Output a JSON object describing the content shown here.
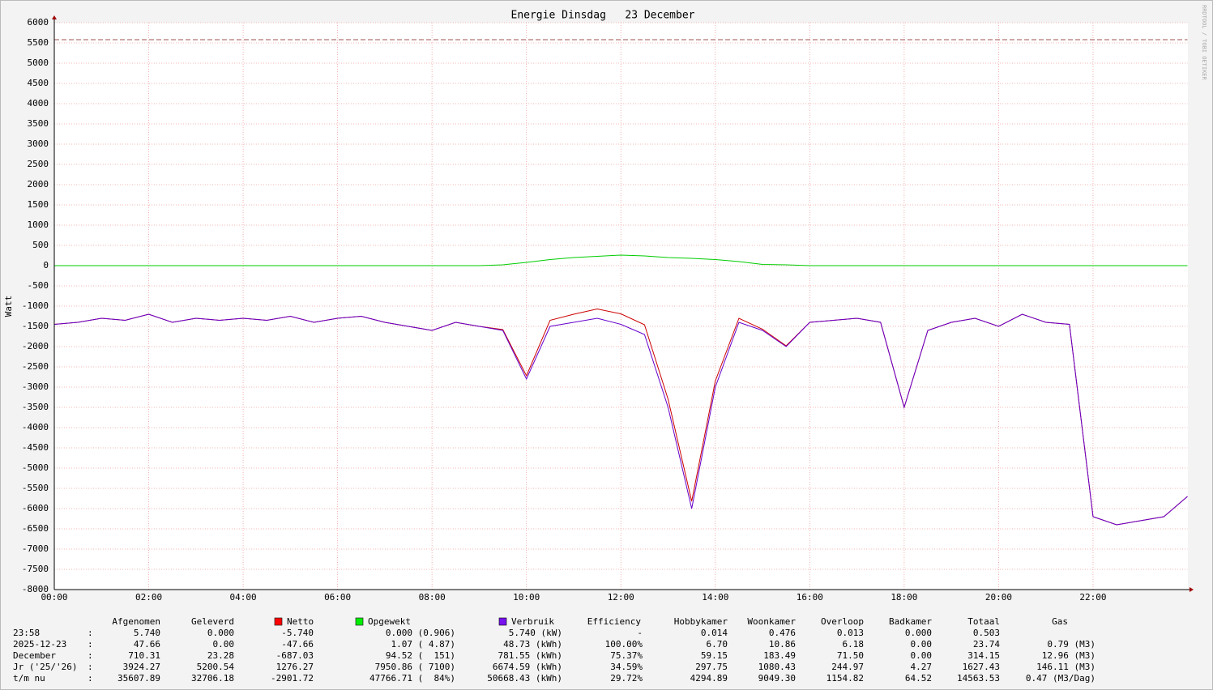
{
  "chart_data": {
    "type": "line",
    "title": "Energie Dinsdag   23 December",
    "y_label": "Watt",
    "watermark": "RRDTOOL / TOBI OETIKER",
    "x": [
      0,
      0.5,
      1,
      1.5,
      2,
      2.5,
      3,
      3.5,
      4,
      4.5,
      5,
      5.5,
      6,
      6.5,
      7,
      7.5,
      8,
      8.5,
      9,
      9.5,
      10,
      10.5,
      11,
      11.5,
      12,
      12.5,
      13,
      13.5,
      14,
      14.5,
      15,
      15.5,
      16,
      16.5,
      17,
      17.5,
      18,
      18.5,
      19,
      19.5,
      20,
      20.5,
      21,
      21.5,
      22,
      22.5,
      23,
      23.5,
      24
    ],
    "xlim": [
      0,
      24
    ],
    "xticks": [
      {
        "value": 0,
        "label": "00:00"
      },
      {
        "value": 2,
        "label": "02:00"
      },
      {
        "value": 4,
        "label": "04:00"
      },
      {
        "value": 6,
        "label": "06:00"
      },
      {
        "value": 8,
        "label": "08:00"
      },
      {
        "value": 10,
        "label": "10:00"
      },
      {
        "value": 12,
        "label": "12:00"
      },
      {
        "value": 14,
        "label": "14:00"
      },
      {
        "value": 16,
        "label": "16:00"
      },
      {
        "value": 18,
        "label": "18:00"
      },
      {
        "value": 20,
        "label": "20:00"
      },
      {
        "value": 22,
        "label": "22:00"
      }
    ],
    "ylim": [
      -8000,
      6000
    ],
    "yticks": [
      -8000,
      -7500,
      -7000,
      -6500,
      -6000,
      -5500,
      -5000,
      -4500,
      -4000,
      -3500,
      -3000,
      -2500,
      -2000,
      -1500,
      -1000,
      -500,
      0,
      500,
      1000,
      1500,
      2000,
      2500,
      3000,
      3500,
      4000,
      4500,
      5000,
      5500,
      6000
    ],
    "grid": true,
    "threshold": 5580,
    "threshold_color": "#a05050",
    "series": [
      {
        "name": "Netto",
        "color": "#cc0000",
        "legend_color": "#ff0000",
        "values": [
          -1450,
          -1400,
          -1300,
          -1350,
          -1200,
          -1400,
          -1300,
          -1350,
          -1300,
          -1350,
          -1250,
          -1400,
          -1300,
          -1250,
          -1400,
          -1500,
          -1600,
          -1400,
          -1500,
          -1580,
          -2720,
          -1350,
          -1200,
          -1070,
          -1190,
          -1460,
          -3300,
          -5820,
          -2850,
          -1300,
          -1570,
          -1980,
          -1400,
          -1350,
          -1300,
          -1400,
          -3500,
          -1600,
          -1400,
          -1300,
          -1500,
          -1200,
          -1400,
          -1450,
          -6200,
          -6400,
          -6300,
          -6200,
          -5700
        ]
      },
      {
        "name": "Opgewekt",
        "color": "#00cc00",
        "legend_color": "#00ee00",
        "values": [
          0,
          0,
          0,
          0,
          0,
          0,
          0,
          0,
          0,
          0,
          0,
          0,
          0,
          0,
          0,
          0,
          0,
          0,
          0,
          20,
          80,
          150,
          200,
          230,
          260,
          240,
          200,
          180,
          150,
          100,
          30,
          20,
          0,
          0,
          0,
          0,
          0,
          0,
          0,
          0,
          0,
          0,
          0,
          0,
          0,
          0,
          0,
          0,
          0
        ]
      },
      {
        "name": "Verbruik",
        "color": "#6600cc",
        "legend_color": "#7711ee",
        "values": [
          -1450,
          -1400,
          -1300,
          -1350,
          -1200,
          -1400,
          -1300,
          -1350,
          -1300,
          -1350,
          -1250,
          -1400,
          -1300,
          -1250,
          -1400,
          -1500,
          -1600,
          -1400,
          -1500,
          -1600,
          -2800,
          -1500,
          -1400,
          -1300,
          -1450,
          -1700,
          -3500,
          -6000,
          -3000,
          -1400,
          -1600,
          -2000,
          -1400,
          -1350,
          -1300,
          -1400,
          -3500,
          -1600,
          -1400,
          -1300,
          -1500,
          -1200,
          -1400,
          -1450,
          -6200,
          -6400,
          -6300,
          -6200,
          -5700
        ]
      }
    ]
  },
  "table": {
    "columns": [
      "Afgenomen",
      "Geleverd",
      "Efficiency",
      "Hobbykamer",
      "Woonkamer",
      "Overloop",
      "Badkamer",
      "Totaal",
      "Gas"
    ],
    "separator": ":",
    "rows": [
      {
        "label": "23:58",
        "cells": [
          "5.740",
          "0.000",
          "-5.740",
          "0.000 (0.906)",
          "5.740 (kW)",
          "-",
          "0.014",
          "0.476",
          "0.013",
          "0.000",
          "0.503"
        ]
      },
      {
        "label": "2025-12-23",
        "cells": [
          "47.66",
          "0.00",
          "-47.66",
          "1.07 ( 4.87)",
          "48.73 (kWh)",
          "100.00%",
          "6.70",
          "10.86",
          "6.18",
          "0.00",
          "23.74",
          "0.79 (M3)"
        ]
      },
      {
        "label": "December",
        "cells": [
          "710.31",
          "23.28",
          "-687.03",
          "94.52 (  151)",
          "781.55 (kWh)",
          "75.37%",
          "59.15",
          "183.49",
          "71.50",
          "0.00",
          "314.15",
          "12.96 (M3)"
        ]
      },
      {
        "label": "Jr ('25/'26)",
        "cells": [
          "3924.27",
          "5200.54",
          "1276.27",
          "7950.86 ( 7100)",
          "6674.59 (kWh)",
          "34.59%",
          "297.75",
          "1080.43",
          "244.97",
          "4.27",
          "1627.43",
          "146.11 (M3)"
        ]
      },
      {
        "label": "t/m nu",
        "cells": [
          "35607.89",
          "32706.18",
          "-2901.72",
          "47766.71 (  84%)",
          "50668.43 (kWh)",
          "29.72%",
          "4294.89",
          "9049.30",
          "1154.82",
          "64.52",
          "14563.53",
          "0.47 (M3/Dag)"
        ]
      }
    ]
  }
}
